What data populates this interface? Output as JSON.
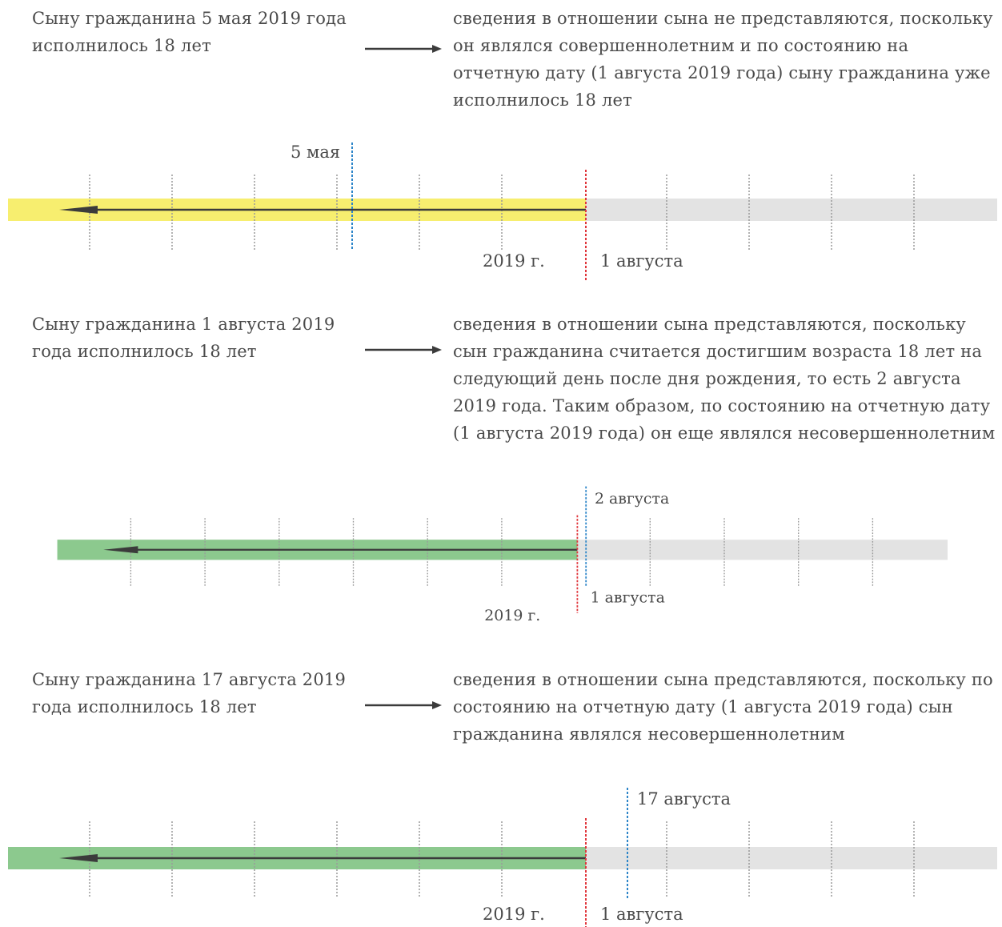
{
  "colors": {
    "highlight_yellow": "#f7ee6f",
    "highlight_green": "#8cc98e",
    "band_gray": "#e3e3e3",
    "arrow_line": "#3b3b3b",
    "tick": "#9a9a9a",
    "marker_red": "#e0353b",
    "marker_blue": "#2e86c9"
  },
  "cases": [
    {
      "left_text": "Сыну гражданина 5 мая 2019 года исполнилось 18 лет",
      "right_text": "сведения в отношении сына не представляются, поскольку он являлся совершеннолетним и по состоянию на отчетную дату (1 августа 2019 года) сыну гражданина уже исполнилось 18 лет",
      "highlight": "yellow",
      "blue_label": "5 мая",
      "year_label": "2019 г.",
      "red_label": "1 августа"
    },
    {
      "left_text": "Сыну гражданина 1 августа 2019 года исполнилось 18 лет",
      "right_text": "сведения в отношении сына представляются, поскольку сын гражданина считается достигшим возраста 18 лет на следующий день после дня рождения, то есть 2 августа 2019 года. Таким образом, по состоянию на отчетную дату (1 августа 2019 года) он еще являлся несовершеннолетним",
      "highlight": "green",
      "blue_label": "2 августа",
      "year_label": "2019 г.",
      "red_label": "1 августа"
    },
    {
      "left_text": "Сыну гражданина 17 августа 2019 года исполнилось 18 лет",
      "right_text": "сведения в отношении сына представляются, поскольку по состоянию на отчетную дату (1 августа 2019 года) сын гражданина являлся несовершеннолетним",
      "highlight": "green",
      "blue_label": "17 августа",
      "year_label": "2019 г.",
      "red_label": "1 августа"
    }
  ]
}
